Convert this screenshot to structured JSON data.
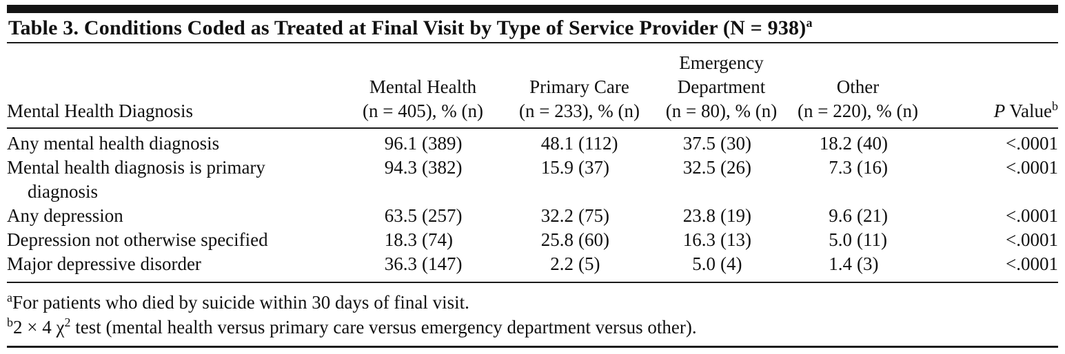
{
  "title": {
    "text": "Table 3. Conditions Coded as Treated at Final Visit by Type of Service Provider (N = 938)",
    "footnote_marker": "a"
  },
  "header": {
    "row_label": "Mental Health Diagnosis",
    "columns": [
      {
        "name": "Mental Health",
        "n_line": "(n = 405), % (n)"
      },
      {
        "name": "Primary Care",
        "n_line": "(n = 233), % (n)"
      },
      {
        "name": "Emergency Department",
        "n_line": "(n = 80), % (n)"
      },
      {
        "name": "Other",
        "n_line": "(n = 220), % (n)"
      }
    ],
    "p_column": {
      "italic_part": "P",
      "rest_part": " Value",
      "footnote_marker": "b"
    }
  },
  "rows": [
    {
      "label": "Any mental health diagnosis",
      "mental_health": {
        "pct": "96.1",
        "n": "(389)"
      },
      "primary_care": {
        "pct": "48.1",
        "n": "(112)"
      },
      "emergency": {
        "pct": "37.5",
        "n": "(30)"
      },
      "other": {
        "pct": "18.2",
        "n": "(40)"
      },
      "p_value": "<.0001"
    },
    {
      "label": "Mental health diagnosis is primary",
      "label_line2": "diagnosis",
      "mental_health": {
        "pct": "94.3",
        "n": "(382)"
      },
      "primary_care": {
        "pct": "15.9",
        "n": "(37)"
      },
      "emergency": {
        "pct": "32.5",
        "n": "(26)"
      },
      "other": {
        "pct": "7.3",
        "n": "(16)"
      },
      "p_value": "<.0001"
    },
    {
      "label": "Any depression",
      "mental_health": {
        "pct": "63.5",
        "n": "(257)"
      },
      "primary_care": {
        "pct": "32.2",
        "n": "(75)"
      },
      "emergency": {
        "pct": "23.8",
        "n": "(19)"
      },
      "other": {
        "pct": "9.6",
        "n": "(21)"
      },
      "p_value": "<.0001"
    },
    {
      "label": "Depression not otherwise specified",
      "mental_health": {
        "pct": "18.3",
        "n": "(74)"
      },
      "primary_care": {
        "pct": "25.8",
        "n": "(60)"
      },
      "emergency": {
        "pct": "16.3",
        "n": "(13)"
      },
      "other": {
        "pct": "5.0",
        "n": "(11)"
      },
      "p_value": "<.0001"
    },
    {
      "label": "Major depressive disorder",
      "mental_health": {
        "pct": "36.3",
        "n": "(147)"
      },
      "primary_care": {
        "pct": "2.2",
        "n": "(5)"
      },
      "emergency": {
        "pct": "5.0",
        "n": "(4)"
      },
      "other": {
        "pct": "1.4",
        "n": "(3)"
      },
      "p_value": "<.0001"
    }
  ],
  "footnotes": [
    {
      "marker": "a",
      "text": "For patients who died by suicide within 30 days of final visit."
    },
    {
      "marker": "b",
      "text_pre": "2 × 4 χ",
      "sup": "2",
      "text_post": " test (mental health versus primary care versus emergency department versus other)."
    }
  ],
  "colors": {
    "ink": "#111111",
    "rule": "#1a1a1a",
    "top_bar": "#141414"
  }
}
